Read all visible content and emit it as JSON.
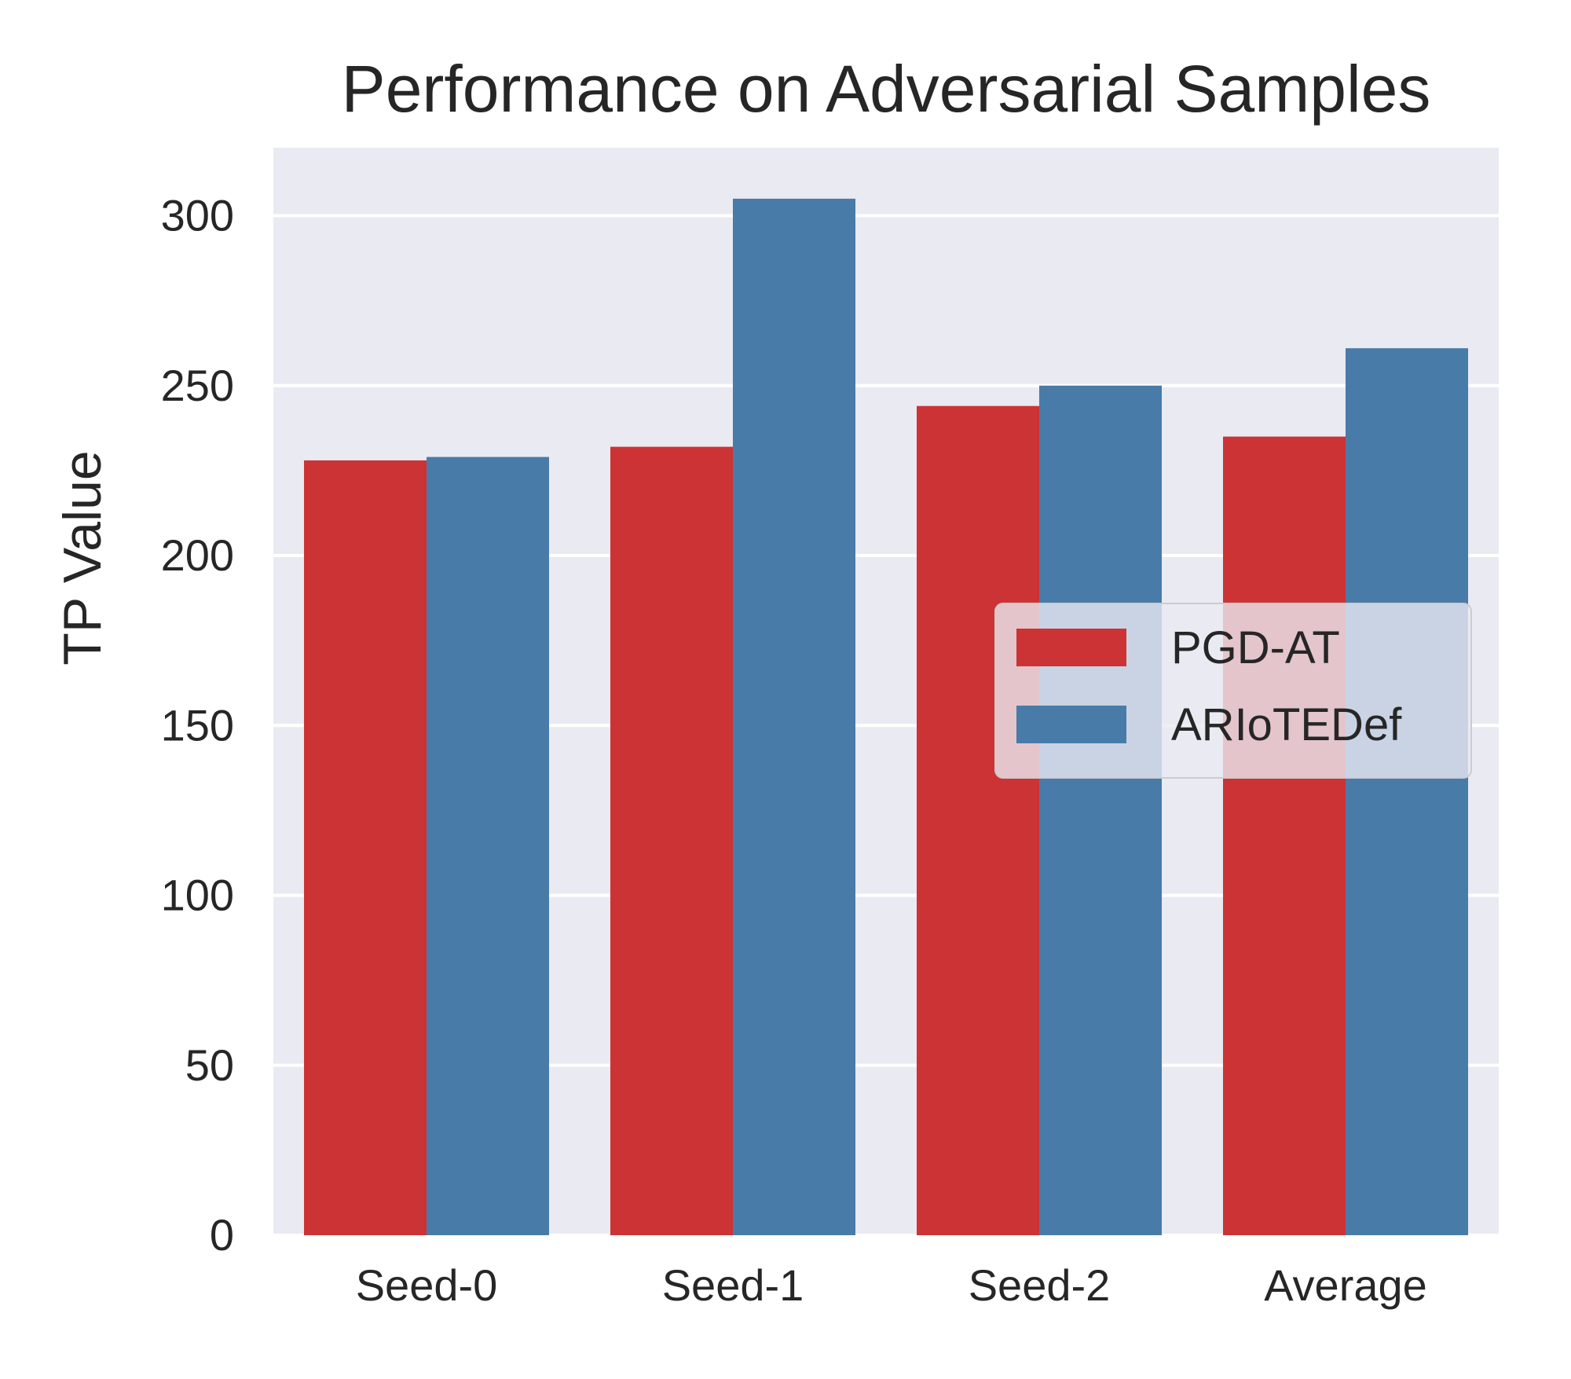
{
  "chart_data": {
    "type": "bar",
    "title": "Performance on Adversarial Samples",
    "xlabel": "",
    "ylabel": "TP Value",
    "categories": [
      "Seed-0",
      "Seed-1",
      "Seed-2",
      "Average"
    ],
    "series": [
      {
        "name": "PGD-AT",
        "values": [
          228,
          232,
          244,
          235
        ],
        "color": "#cc3335"
      },
      {
        "name": "ARIoTEDef",
        "values": [
          229,
          305,
          250,
          261
        ],
        "color": "#487ba8"
      }
    ],
    "ylim": [
      0,
      320
    ],
    "yticks": [
      0,
      50,
      100,
      150,
      200,
      250,
      300
    ],
    "grid": true,
    "legend_position": "center-right",
    "plot_background": "#eaeaf2"
  }
}
